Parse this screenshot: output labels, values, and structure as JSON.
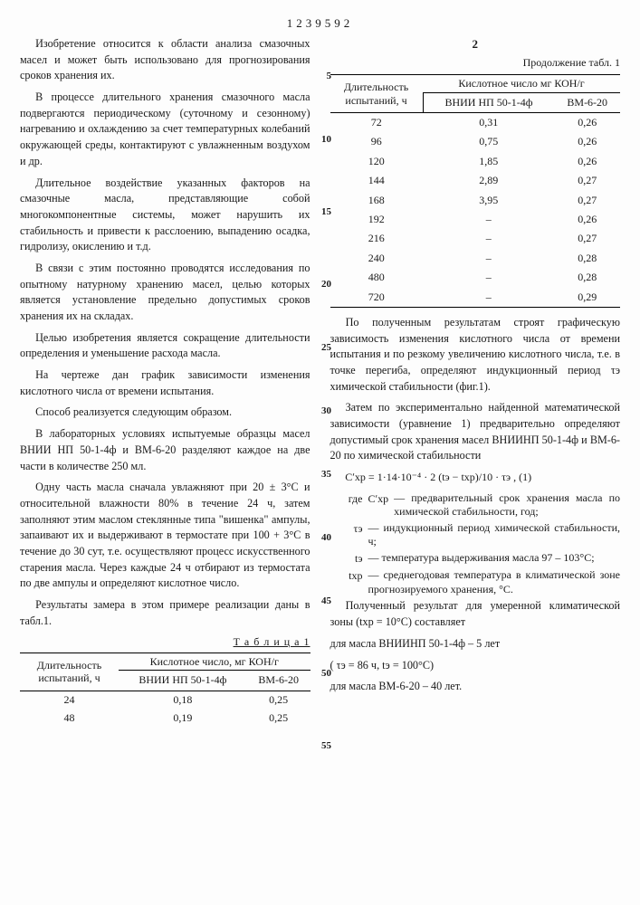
{
  "page": {
    "doc_number": "1239592",
    "page_number_right": "2",
    "background": "#fdfdfd",
    "text_color": "#1a1a1a",
    "font_size_pt": 12
  },
  "left_col": {
    "paragraphs": [
      "Изобретение относится к области анализа смазочных масел и может быть использовано для прогнозирования сроков хранения их.",
      "В процессе длительного хранения смазочного масла подвергаются периодическому (суточному и сезонному) нагреванию и охлаждению за счет температурных колебаний окружающей среды, контактируют с увлажненным воздухом и др.",
      "Длительное воздействие указанных факторов на смазочные масла, представляющие собой многокомпонентные системы, может нарушить их стабильность и привести к расслоению, выпадению осадка, гидролизу, окислению и т.д.",
      "В связи с этим постоянно проводятся исследования по опытному натурному хранению масел, целью которых является установление предельно допустимых сроков хранения их на складах.",
      "Целью изобретения является сокращение длительности определения и уменьшение расхода масла.",
      "На чертеже дан график зависимости изменения кислотного числа от времени испытания.",
      "Способ реализуется следующим образом.",
      "В лабораторных условиях испытуемые образцы масел ВНИИ НП 50-1-4ф и ВМ-6-20 разделяют каждое на две части в количестве 250 мл.",
      "Одну часть масла сначала увлажняют при 20 ± 3°С и относительной влажности 80% в течение 24 ч, затем заполняют этим маслом стеклянные типа \"вишенка\" ампулы, запаивают их и выдерживают в термостате при 100 + 3°С в течение до 30 сут, т.е. осуществляют процесс искусственного старения масла. Через каждые 24 ч отбирают из термостата по две ампулы и определяют кислотное число.",
      "Результаты замера в этом примере реализации даны в табл.1."
    ],
    "line_numbers": [
      5,
      10,
      15,
      20,
      25,
      30,
      35,
      40,
      45,
      50,
      55
    ],
    "table1": {
      "title": "Т а б л и ц а 1",
      "header1": "Длительность испытаний, ч",
      "header2": "Кислотное число, мг КОН/г",
      "sub1": "ВНИИ НП 50-1-4ф",
      "sub2": "ВМ-6-20",
      "rows": [
        [
          "24",
          "0,18",
          "0,25"
        ],
        [
          "48",
          "0,19",
          "0,25"
        ]
      ]
    }
  },
  "right_col": {
    "cont_label": "Продолжение табл. 1",
    "table_cont": {
      "header1": "Длительность испытаний, ч",
      "header2": "Кислотное число мг КОН/г",
      "sub1": "ВНИИ НП 50-1-4ф",
      "sub2": "ВМ-6-20",
      "rows": [
        [
          "72",
          "0,31",
          "0,26"
        ],
        [
          "96",
          "0,75",
          "0,26"
        ],
        [
          "120",
          "1,85",
          "0,26"
        ],
        [
          "144",
          "2,89",
          "0,27"
        ],
        [
          "168",
          "3,95",
          "0,27"
        ],
        [
          "192",
          "–",
          "0,26"
        ],
        [
          "216",
          "–",
          "0,27"
        ],
        [
          "240",
          "–",
          "0,28"
        ],
        [
          "480",
          "–",
          "0,28"
        ],
        [
          "720",
          "–",
          "0,29"
        ]
      ]
    },
    "paragraphs_after": [
      "По полученным результатам строят графическую зависимость изменения кислотного числа от времени испытания и по резкому увеличению кислотного числа, т.е. в точке перегиба, определяют индукционный период τэ химической стабильности (фиг.1).",
      "Затем по экспериментально найденной математической зависимости (уравнение 1) предварительно определяют допустимый срок хранения масел ВНИИНП 50-1-4ф и ВМ-6-20 по химической стабильности"
    ],
    "formula": "Сʹхр = 1·14·10⁻⁴ · 2 (tэ − tхр)/10 · τэ ,   (1)",
    "where_label": "где",
    "where_items": [
      {
        "sym": "Сʹхр",
        "def": "— предварительный срок хранения масла по химической стабильности, год;"
      },
      {
        "sym": "τэ",
        "def": "— индукционный период химической стабильности, ч;"
      },
      {
        "sym": "tэ",
        "def": "— температура выдерживания масла 97 – 103°С;"
      },
      {
        "sym": "tхр",
        "def": "— среднегодовая температура в климатической зоне прогнозируемого хранения, °С."
      }
    ],
    "result_para": "Полученный результат для умеренной климатической зоны (tхр = 10°С) составляет",
    "result_lines": [
      "для масла ВНИИНП 50-1-4ф – 5 лет",
      "( τэ = 86 ч, tэ = 100°С)",
      "для масла ВМ-6-20 – 40 лет."
    ]
  }
}
